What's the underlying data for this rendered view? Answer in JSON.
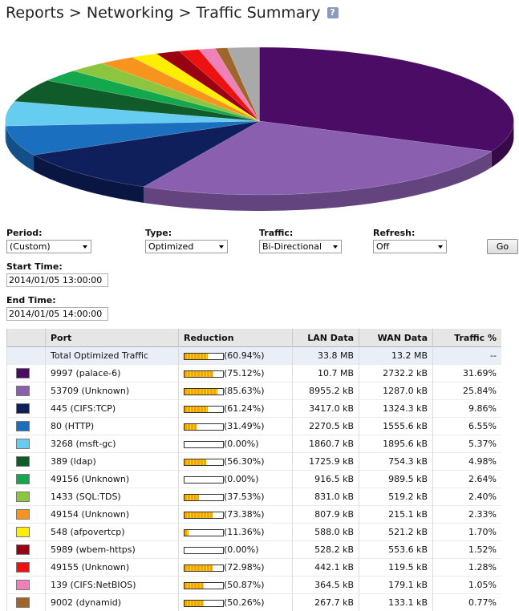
{
  "header": {
    "title": "Reports > Networking > Traffic Summary",
    "help_label": "?"
  },
  "controls": {
    "period": {
      "label": "Period:",
      "value": "(Custom)"
    },
    "type": {
      "label": "Type:",
      "value": "Optimized"
    },
    "traffic": {
      "label": "Traffic:",
      "value": "Bi-Directional"
    },
    "refresh": {
      "label": "Refresh:",
      "value": "Off"
    },
    "go_label": "Go",
    "start": {
      "label": "Start Time:",
      "value": "2014/01/05 13:00:00"
    },
    "end": {
      "label": "End Time:",
      "value": "2014/01/05 14:00:00"
    }
  },
  "table": {
    "headers": {
      "port": "Port",
      "reduction": "Reduction",
      "lan": "LAN Data",
      "wan": "WAN Data",
      "traffic": "Traffic %"
    },
    "total": {
      "port": "Total Optimized Traffic",
      "reduction": "(60.94%)",
      "reduction_pct": 60.94,
      "lan": "33.8 MB",
      "wan": "13.2 MB",
      "traffic": "--"
    },
    "rows": [
      {
        "color": "#4b0c66",
        "port": "9997 (palace-6)",
        "reduction": "(75.12%)",
        "reduction_pct": 75.12,
        "lan": "10.7 MB",
        "wan": "2732.2 kB",
        "traffic": "31.69%",
        "share": 31.69
      },
      {
        "color": "#8a5fb0",
        "port": "53709 (Unknown)",
        "reduction": "(85.63%)",
        "reduction_pct": 85.63,
        "lan": "8955.2 kB",
        "wan": "1287.0 kB",
        "traffic": "25.84%",
        "share": 25.84
      },
      {
        "color": "#0e1f5c",
        "port": "445 (CIFS:TCP)",
        "reduction": "(61.24%)",
        "reduction_pct": 61.24,
        "lan": "3417.0 kB",
        "wan": "1324.3 kB",
        "traffic": "9.86%",
        "share": 9.86
      },
      {
        "color": "#1a6fbf",
        "port": "80 (HTTP)",
        "reduction": "(31.49%)",
        "reduction_pct": 31.49,
        "lan": "2270.5 kB",
        "wan": "1555.6 kB",
        "traffic": "6.55%",
        "share": 6.55
      },
      {
        "color": "#66ccf0",
        "port": "3268 (msft-gc)",
        "reduction": "(0.00%)",
        "reduction_pct": 0,
        "lan": "1860.7 kB",
        "wan": "1895.6 kB",
        "traffic": "5.37%",
        "share": 5.37
      },
      {
        "color": "#0f5c2a",
        "port": "389 (ldap)",
        "reduction": "(56.30%)",
        "reduction_pct": 56.3,
        "lan": "1725.9 kB",
        "wan": "754.3 kB",
        "traffic": "4.98%",
        "share": 4.98
      },
      {
        "color": "#14a84e",
        "port": "49156 (Unknown)",
        "reduction": "(0.00%)",
        "reduction_pct": 0,
        "lan": "916.5 kB",
        "wan": "989.5 kB",
        "traffic": "2.64%",
        "share": 2.64
      },
      {
        "color": "#8cc63f",
        "port": "1433 (SQL:TDS)",
        "reduction": "(37.53%)",
        "reduction_pct": 37.53,
        "lan": "831.0 kB",
        "wan": "519.2 kB",
        "traffic": "2.40%",
        "share": 2.4
      },
      {
        "color": "#f7941d",
        "port": "49154 (Unknown)",
        "reduction": "(73.38%)",
        "reduction_pct": 73.38,
        "lan": "807.9 kB",
        "wan": "215.1 kB",
        "traffic": "2.33%",
        "share": 2.33
      },
      {
        "color": "#ffee00",
        "port": "548 (afpovertcp)",
        "reduction": "(11.36%)",
        "reduction_pct": 11.36,
        "lan": "588.0 kB",
        "wan": "521.2 kB",
        "traffic": "1.70%",
        "share": 1.7
      },
      {
        "color": "#990011",
        "port": "5989 (wbem-https)",
        "reduction": "(0.00%)",
        "reduction_pct": 0,
        "lan": "528.2 kB",
        "wan": "553.6 kB",
        "traffic": "1.52%",
        "share": 1.52
      },
      {
        "color": "#ee1111",
        "port": "49155 (Unknown)",
        "reduction": "(72.98%)",
        "reduction_pct": 72.98,
        "lan": "442.1 kB",
        "wan": "119.5 kB",
        "traffic": "1.28%",
        "share": 1.28
      },
      {
        "color": "#f080b8",
        "port": "139 (CIFS:NetBIOS)",
        "reduction": "(50.87%)",
        "reduction_pct": 50.87,
        "lan": "364.5 kB",
        "wan": "179.1 kB",
        "traffic": "1.05%",
        "share": 1.05
      },
      {
        "color": "#a0652a",
        "port": "9002 (dynamid)",
        "reduction": "(50.26%)",
        "reduction_pct": 50.26,
        "lan": "267.7 kB",
        "wan": "133.1 kB",
        "traffic": "0.77%",
        "share": 0.77
      }
    ]
  },
  "pie": {
    "other_color": "#a9a9a9"
  }
}
